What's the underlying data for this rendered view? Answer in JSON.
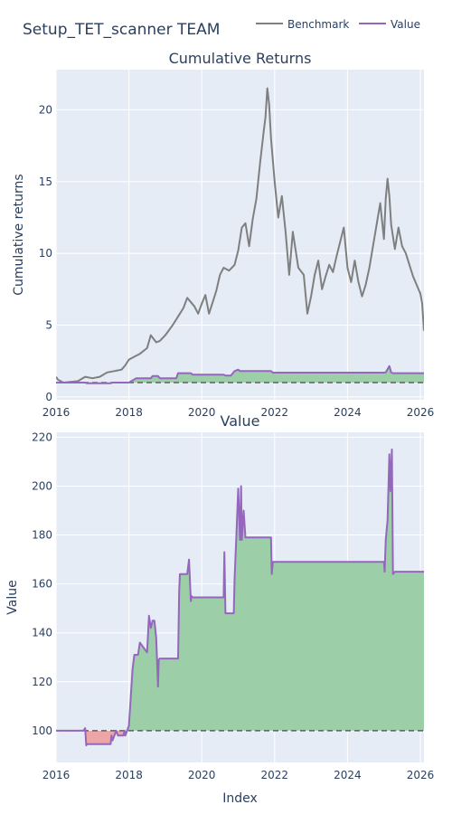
{
  "title": "Setup_TET_scanner TEAM",
  "legend": [
    {
      "name": "Benchmark",
      "color": "#7f7f7f"
    },
    {
      "name": "Value",
      "color": "#9467bd"
    }
  ],
  "colors": {
    "plot_bg": "#e5ecf6",
    "grid": "#ffffff",
    "benchmark": "#7f7f7f",
    "value": "#9467bd",
    "gain_fill": "#9ccea8",
    "loss_fill": "#eda5a7",
    "baseline": "#5f5f5f"
  },
  "chart_data": [
    {
      "type": "line",
      "title": "Cumulative Returns",
      "xlabel": "",
      "ylabel": "Cumulative returns",
      "xlim": [
        2016.0,
        2026.1
      ],
      "ylim": [
        -0.2,
        22.8
      ],
      "xticks": [
        2016,
        2018,
        2020,
        2022,
        2024,
        2026
      ],
      "yticks": [
        0,
        5,
        10,
        15,
        20
      ],
      "grid": true,
      "baseline": 1,
      "series": [
        {
          "name": "Benchmark",
          "x": [
            2016.0,
            2016.05,
            2016.2,
            2016.4,
            2016.6,
            2016.8,
            2017.0,
            2017.2,
            2017.4,
            2017.6,
            2017.8,
            2017.9,
            2018.0,
            2018.15,
            2018.3,
            2018.5,
            2018.6,
            2018.75,
            2018.85,
            2019.0,
            2019.2,
            2019.4,
            2019.5,
            2019.6,
            2019.8,
            2019.9,
            2020.0,
            2020.1,
            2020.2,
            2020.3,
            2020.4,
            2020.5,
            2020.6,
            2020.75,
            2020.9,
            2021.0,
            2021.1,
            2021.2,
            2021.3,
            2021.4,
            2021.5,
            2021.6,
            2021.7,
            2021.75,
            2021.8,
            2021.85,
            2021.9,
            2022.0,
            2022.1,
            2022.2,
            2022.3,
            2022.4,
            2022.5,
            2022.65,
            2022.8,
            2022.9,
            2023.0,
            2023.1,
            2023.2,
            2023.3,
            2023.4,
            2023.5,
            2023.6,
            2023.7,
            2023.8,
            2023.9,
            2024.0,
            2024.1,
            2024.2,
            2024.3,
            2024.4,
            2024.5,
            2024.6,
            2024.7,
            2024.8,
            2024.9,
            2025.0,
            2025.05,
            2025.1,
            2025.15,
            2025.2,
            2025.3,
            2025.4,
            2025.5,
            2025.6,
            2025.7,
            2025.8,
            2025.9,
            2026.0,
            2026.05,
            2026.1
          ],
          "values": [
            1.4,
            1.2,
            1.0,
            1.05,
            1.1,
            1.4,
            1.3,
            1.4,
            1.7,
            1.8,
            1.9,
            2.2,
            2.6,
            2.8,
            3.0,
            3.4,
            4.3,
            3.8,
            3.9,
            4.3,
            5.0,
            5.8,
            6.2,
            6.9,
            6.3,
            5.8,
            6.5,
            7.1,
            5.8,
            6.6,
            7.4,
            8.5,
            9.0,
            8.8,
            9.2,
            10.2,
            11.8,
            12.1,
            10.5,
            12.4,
            13.8,
            16.3,
            18.5,
            19.5,
            21.5,
            20.4,
            18.0,
            15.0,
            12.5,
            14.0,
            11.5,
            8.5,
            11.5,
            9.0,
            8.5,
            5.8,
            7.0,
            8.5,
            9.5,
            7.5,
            8.4,
            9.2,
            8.7,
            9.8,
            10.8,
            11.8,
            9.0,
            8.0,
            9.5,
            8.0,
            7.0,
            7.8,
            9.0,
            10.5,
            12.0,
            13.5,
            11.0,
            13.8,
            15.2,
            14.0,
            12.0,
            10.3,
            11.8,
            10.5,
            10.0,
            9.2,
            8.4,
            7.8,
            7.2,
            6.5,
            4.6
          ]
        },
        {
          "name": "Value",
          "x": [
            2016.0,
            2016.8,
            2016.85,
            2017.5,
            2017.55,
            2017.85,
            2018.0,
            2018.2,
            2018.6,
            2018.65,
            2018.8,
            2018.85,
            2019.3,
            2019.35,
            2019.7,
            2019.75,
            2020.6,
            2020.65,
            2020.8,
            2020.9,
            2021.0,
            2021.05,
            2021.15,
            2021.2,
            2021.9,
            2021.95,
            2025.0,
            2025.05,
            2025.15,
            2025.2,
            2025.25,
            2026.1
          ],
          "values": [
            1.0,
            1.0,
            0.95,
            0.95,
            1.0,
            1.0,
            1.0,
            1.3,
            1.3,
            1.45,
            1.45,
            1.3,
            1.3,
            1.65,
            1.65,
            1.55,
            1.55,
            1.48,
            1.48,
            1.8,
            1.9,
            1.8,
            1.8,
            1.8,
            1.8,
            1.69,
            1.69,
            1.7,
            2.15,
            1.7,
            1.65,
            1.65
          ]
        }
      ]
    },
    {
      "type": "area",
      "title": "Value",
      "xlabel": "Index",
      "ylabel": "Value",
      "xlim": [
        2016.0,
        2026.1
      ],
      "ylim": [
        87,
        222
      ],
      "xticks": [
        2016,
        2018,
        2020,
        2022,
        2024,
        2026
      ],
      "yticks": [
        100,
        120,
        140,
        160,
        180,
        200,
        220
      ],
      "grid": true,
      "baseline": 100,
      "series": [
        {
          "name": "Value",
          "x": [
            2016.0,
            2016.75,
            2016.8,
            2016.83,
            2016.85,
            2017.5,
            2017.52,
            2017.55,
            2017.65,
            2017.7,
            2017.85,
            2017.88,
            2017.9,
            2018.0,
            2018.1,
            2018.15,
            2018.25,
            2018.3,
            2018.5,
            2018.55,
            2018.6,
            2018.65,
            2018.7,
            2018.75,
            2018.8,
            2018.82,
            2018.85,
            2019.35,
            2019.38,
            2019.4,
            2019.6,
            2019.65,
            2019.7,
            2019.72,
            2019.75,
            2020.6,
            2020.62,
            2020.65,
            2020.88,
            2020.9,
            2020.95,
            2021.0,
            2021.05,
            2021.08,
            2021.1,
            2021.15,
            2021.2,
            2021.9,
            2021.92,
            2021.95,
            2025.0,
            2025.02,
            2025.05,
            2025.1,
            2025.15,
            2025.18,
            2025.22,
            2025.25,
            2025.3,
            2026.1
          ],
          "values": [
            100,
            100,
            101,
            94,
            94.5,
            94.5,
            98,
            96,
            100,
            98,
            98,
            100,
            98,
            102,
            125,
            131,
            131,
            136,
            132,
            147,
            142,
            145,
            145,
            138,
            118,
            129,
            129.5,
            129.5,
            157,
            164,
            164,
            170,
            153,
            155,
            154.5,
            154.5,
            173,
            148,
            148,
            162,
            180,
            199,
            178,
            200,
            178,
            190,
            179,
            179,
            164,
            169,
            169,
            165,
            178,
            186,
            213,
            198,
            215,
            164,
            165,
            165
          ]
        }
      ]
    }
  ]
}
